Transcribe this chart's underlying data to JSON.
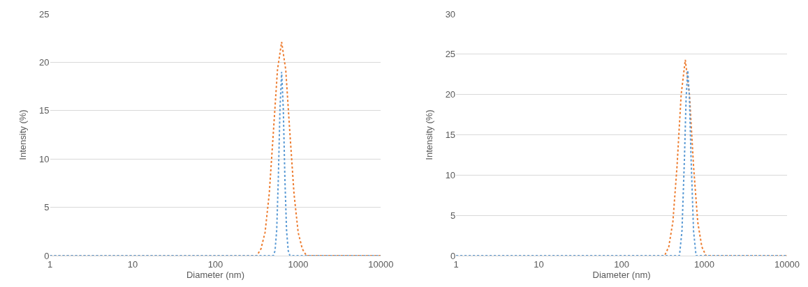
{
  "chart_data": [
    {
      "type": "line",
      "xlabel": "Diameter (nm)",
      "ylabel": "Intensity (%)",
      "log": "x",
      "xlim": [
        1,
        10000
      ],
      "xticks": [
        1,
        10,
        100,
        1000,
        10000
      ],
      "ylim": [
        0,
        25
      ],
      "yticks": [
        0,
        5,
        10,
        15,
        20,
        25
      ],
      "grid": "y",
      "line_style": "dotted",
      "marker": "none",
      "series": [
        {
          "color": "#ed7d31",
          "x": [
            1,
            316,
            355,
            398,
            447,
            501,
            562,
            631,
            708,
            794,
            891,
            1000,
            1122,
            1259,
            10000
          ],
          "values": [
            0,
            0,
            0.7,
            2.4,
            6.4,
            12.7,
            19.2,
            22.1,
            19.2,
            12.7,
            6.4,
            2.4,
            0.7,
            0,
            0
          ]
        },
        {
          "color": "#5b9bd5",
          "x": [
            1,
            501,
            525,
            550,
            575,
            603,
            631,
            661,
            692,
            724,
            759,
            794,
            10000
          ],
          "values": [
            0,
            0,
            0.5,
            2.6,
            7.8,
            15.2,
            19,
            15.2,
            7.8,
            2.6,
            0.5,
            0,
            0
          ]
        }
      ]
    },
    {
      "type": "line",
      "xlabel": "Diameter (nm)",
      "ylabel": "Intensity (%)",
      "log": "x",
      "xlim": [
        1,
        10000
      ],
      "xticks": [
        1,
        10,
        100,
        1000,
        10000
      ],
      "ylim": [
        0,
        30
      ],
      "yticks": [
        0,
        5,
        10,
        15,
        20,
        25,
        30
      ],
      "grid": "y",
      "line_style": "dotted",
      "marker": "none",
      "series": [
        {
          "color": "#ed7d31",
          "x": [
            1,
            331,
            372,
            417,
            468,
            525,
            589,
            661,
            741,
            832,
            933,
            1047,
            10000
          ],
          "values": [
            0,
            0,
            1.1,
            4.2,
            11.1,
            20.0,
            24.3,
            20.0,
            11.1,
            4.2,
            1.1,
            0,
            0
          ]
        },
        {
          "color": "#5b9bd5",
          "x": [
            1,
            501,
            537,
            575,
            603,
            631,
            661,
            692,
            741,
            794,
            10000
          ],
          "values": [
            0,
            0,
            3.1,
            12.0,
            19.6,
            23,
            19.6,
            12.0,
            3.1,
            0,
            0
          ]
        }
      ]
    }
  ]
}
